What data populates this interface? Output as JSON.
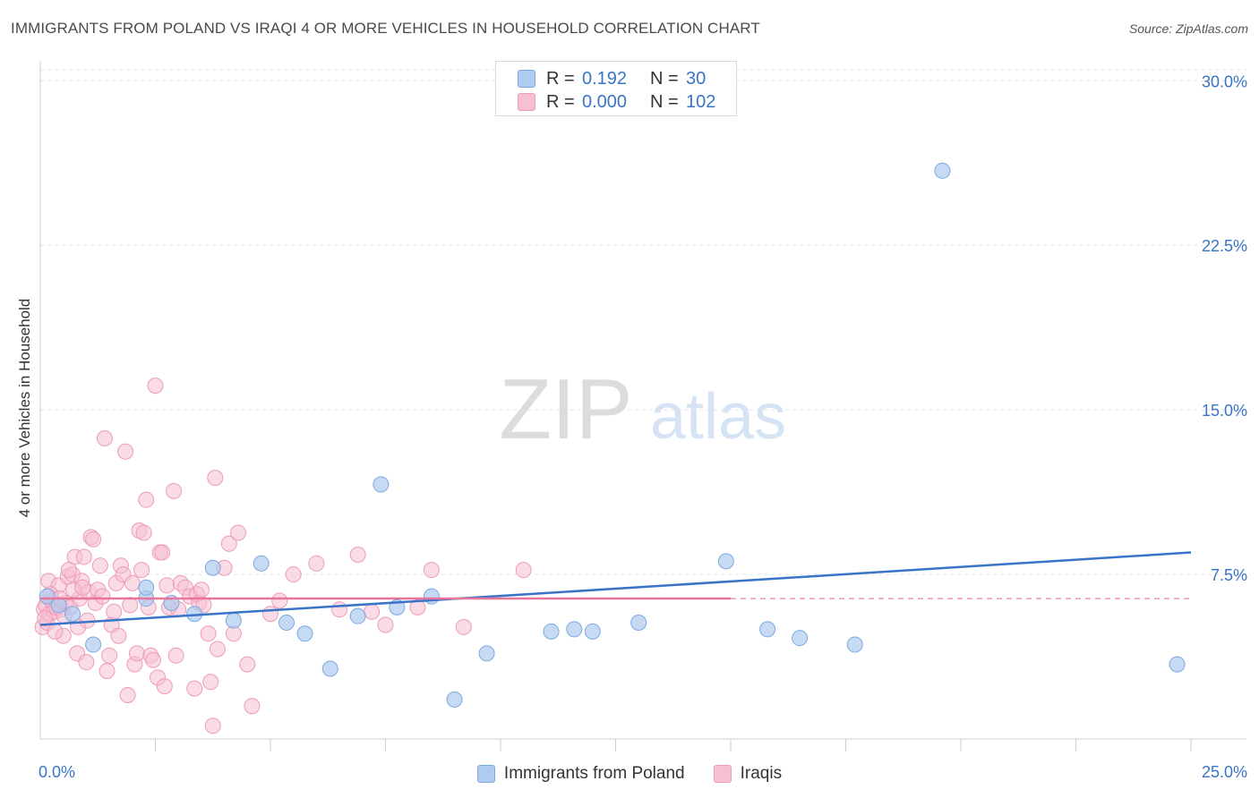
{
  "header": {
    "title": "IMMIGRANTS FROM POLAND VS IRAQI 4 OR MORE VEHICLES IN HOUSEHOLD CORRELATION CHART",
    "source": "Source: ZipAtlas.com"
  },
  "watermark": {
    "zip": "ZIP",
    "atlas": "atlas"
  },
  "legend_top": {
    "series1": {
      "r_label": "R =",
      "r_value": "0.192",
      "n_label": "N =",
      "n_value": "30"
    },
    "series2": {
      "r_label": "R =",
      "r_value": "0.000",
      "n_label": "N =",
      "n_value": "102"
    }
  },
  "legend_bottom": {
    "series1": "Immigrants from Poland",
    "series2": "Iraqis"
  },
  "colors": {
    "blue_fill": "#aecbf0",
    "blue_stroke": "#7ea8e0",
    "blue_line": "#3a74c7",
    "pink_fill": "#f6bfd2",
    "pink_stroke": "#ee9ab8",
    "pink_line": "#e8749c",
    "grid": "#e3e3e3",
    "axis_text": "#3a74c7"
  },
  "chart_data": {
    "type": "scatter",
    "title": "IMMIGRANTS FROM POLAND VS IRAQI 4 OR MORE VEHICLES IN HOUSEHOLD CORRELATION CHART",
    "xlabel": "",
    "ylabel": "4 or more Vehicles in Household",
    "xlim": [
      0,
      25
    ],
    "ylim": [
      0,
      30.5
    ],
    "x_tick_labels": [
      "0.0%",
      "25.0%"
    ],
    "y_ticks": [
      7.5,
      15.0,
      22.5,
      30.0
    ],
    "y_tick_labels": [
      "7.5%",
      "15.0%",
      "22.5%",
      "30.0%"
    ],
    "series": [
      {
        "name": "Immigrants from Poland",
        "color": "blue",
        "points": [
          [
            0.15,
            6.5
          ],
          [
            0.7,
            5.7
          ],
          [
            1.15,
            4.3
          ],
          [
            2.3,
            6.4
          ],
          [
            2.3,
            6.9
          ],
          [
            2.85,
            6.2
          ],
          [
            3.35,
            5.7
          ],
          [
            3.75,
            7.8
          ],
          [
            4.2,
            5.4
          ],
          [
            4.8,
            8.0
          ],
          [
            5.35,
            5.3
          ],
          [
            5.75,
            4.8
          ],
          [
            6.3,
            3.2
          ],
          [
            6.9,
            5.6
          ],
          [
            7.4,
            11.6
          ],
          [
            7.75,
            6.0
          ],
          [
            8.5,
            6.5
          ],
          [
            9.0,
            1.8
          ],
          [
            9.7,
            3.9
          ],
          [
            11.1,
            4.9
          ],
          [
            11.6,
            5.0
          ],
          [
            12.0,
            4.9
          ],
          [
            13.0,
            5.3
          ],
          [
            14.9,
            8.1
          ],
          [
            15.8,
            5.0
          ],
          [
            16.5,
            4.6
          ],
          [
            17.7,
            4.3
          ],
          [
            19.6,
            25.9
          ],
          [
            24.7,
            3.4
          ],
          [
            0.4,
            6.1
          ]
        ]
      },
      {
        "name": "Iraqis",
        "color": "pink",
        "points": [
          [
            0.05,
            5.1
          ],
          [
            0.08,
            5.9
          ],
          [
            0.12,
            6.1
          ],
          [
            0.15,
            5.3
          ],
          [
            0.18,
            7.2
          ],
          [
            0.2,
            5.7
          ],
          [
            0.25,
            6.3
          ],
          [
            0.3,
            5.8
          ],
          [
            0.35,
            6.0
          ],
          [
            0.4,
            7.0
          ],
          [
            0.45,
            5.9
          ],
          [
            0.5,
            4.7
          ],
          [
            0.55,
            6.2
          ],
          [
            0.6,
            7.4
          ],
          [
            0.65,
            6.0
          ],
          [
            0.7,
            7.5
          ],
          [
            0.75,
            8.3
          ],
          [
            0.8,
            3.9
          ],
          [
            0.85,
            6.4
          ],
          [
            0.9,
            7.2
          ],
          [
            0.95,
            8.3
          ],
          [
            1.0,
            3.5
          ],
          [
            1.05,
            6.7
          ],
          [
            1.1,
            9.2
          ],
          [
            1.15,
            9.1
          ],
          [
            1.2,
            6.2
          ],
          [
            1.25,
            6.8
          ],
          [
            1.3,
            7.9
          ],
          [
            1.35,
            6.5
          ],
          [
            1.4,
            13.7
          ],
          [
            1.45,
            3.1
          ],
          [
            1.5,
            3.8
          ],
          [
            1.55,
            5.2
          ],
          [
            1.6,
            5.8
          ],
          [
            1.65,
            7.1
          ],
          [
            1.7,
            4.7
          ],
          [
            1.75,
            7.9
          ],
          [
            1.8,
            7.5
          ],
          [
            1.85,
            13.1
          ],
          [
            1.9,
            2.0
          ],
          [
            1.95,
            6.1
          ],
          [
            2.0,
            7.1
          ],
          [
            2.05,
            3.4
          ],
          [
            2.1,
            3.9
          ],
          [
            2.15,
            9.5
          ],
          [
            2.2,
            7.7
          ],
          [
            2.25,
            9.4
          ],
          [
            2.3,
            10.9
          ],
          [
            2.35,
            6.0
          ],
          [
            2.4,
            3.8
          ],
          [
            2.45,
            3.6
          ],
          [
            2.5,
            16.1
          ],
          [
            2.55,
            2.8
          ],
          [
            2.6,
            8.5
          ],
          [
            2.65,
            8.5
          ],
          [
            2.7,
            2.4
          ],
          [
            2.75,
            7.0
          ],
          [
            2.8,
            6.0
          ],
          [
            2.9,
            11.3
          ],
          [
            2.95,
            3.8
          ],
          [
            3.0,
            5.9
          ],
          [
            3.05,
            7.1
          ],
          [
            3.15,
            6.9
          ],
          [
            3.25,
            6.5
          ],
          [
            3.35,
            2.3
          ],
          [
            3.4,
            6.6
          ],
          [
            3.45,
            6.2
          ],
          [
            3.5,
            6.8
          ],
          [
            3.55,
            6.1
          ],
          [
            3.65,
            4.8
          ],
          [
            3.7,
            2.6
          ],
          [
            3.75,
            0.6
          ],
          [
            3.8,
            11.9
          ],
          [
            3.85,
            4.1
          ],
          [
            4.0,
            7.8
          ],
          [
            4.1,
            8.9
          ],
          [
            4.2,
            4.8
          ],
          [
            4.3,
            9.4
          ],
          [
            4.5,
            3.4
          ],
          [
            4.6,
            1.5
          ],
          [
            5.0,
            5.7
          ],
          [
            5.2,
            6.3
          ],
          [
            5.5,
            7.5
          ],
          [
            6.0,
            8.0
          ],
          [
            6.5,
            5.9
          ],
          [
            6.9,
            8.4
          ],
          [
            7.2,
            5.8
          ],
          [
            7.5,
            5.2
          ],
          [
            8.2,
            6.0
          ],
          [
            8.5,
            7.7
          ],
          [
            9.2,
            5.1
          ],
          [
            10.5,
            7.7
          ],
          [
            0.1,
            5.5
          ],
          [
            0.22,
            6.6
          ],
          [
            0.32,
            4.9
          ],
          [
            0.42,
            6.4
          ],
          [
            0.52,
            5.6
          ],
          [
            0.62,
            7.7
          ],
          [
            0.72,
            6.8
          ],
          [
            0.82,
            5.1
          ],
          [
            0.92,
            6.9
          ],
          [
            1.02,
            5.4
          ]
        ]
      }
    ],
    "trendlines": [
      {
        "series": "Immigrants from Poland",
        "x": [
          0,
          25
        ],
        "y": [
          5.2,
          8.5
        ]
      },
      {
        "series": "Iraqis",
        "x": [
          0,
          15
        ],
        "y": [
          6.4,
          6.4
        ],
        "dashed_extension_to": 25
      }
    ]
  }
}
